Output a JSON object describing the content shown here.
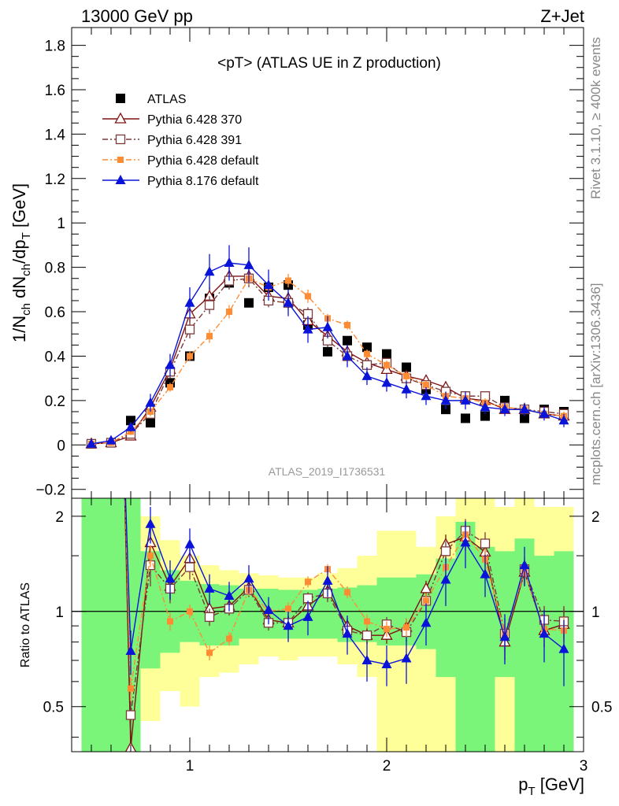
{
  "header": {
    "left": "13000 GeV pp",
    "right": "Z+Jet"
  },
  "side_labels": {
    "rivet": "Rivet 3.1.10, ≥ 400k events",
    "mcplots": "mcplots.cern.ch [arXiv:1306.3436]"
  },
  "chart_data": [
    {
      "type": "line",
      "panel": "main",
      "title": "<pT> (ATLAS UE in Z production)",
      "watermark": "ATLAS_2019_I1736531",
      "ylabel_main": "1/N",
      "ylabel_sub_ch": "ch",
      "ylabel_mid": " dN",
      "ylabel_mid2": "/dp",
      "ylabel_sub_t": "T",
      "ylabel_unit": " [GeV]",
      "xlim": [
        0.4,
        3.0
      ],
      "ylim": [
        -0.24,
        1.88
      ],
      "yticks": [
        "−0.2",
        "0",
        "0.2",
        "0.4",
        "0.6",
        "0.8",
        "1",
        "1.2",
        "1.4",
        "1.6",
        "1.8"
      ],
      "ytick_values": [
        -0.2,
        0,
        0.2,
        0.4,
        0.6,
        0.8,
        1.0,
        1.2,
        1.4,
        1.6,
        1.8
      ],
      "x": [
        0.5,
        0.6,
        0.7,
        0.8,
        0.9,
        1.0,
        1.1,
        1.2,
        1.3,
        1.4,
        1.5,
        1.6,
        1.7,
        1.8,
        1.9,
        2.0,
        2.1,
        2.2,
        2.3,
        2.4,
        2.5,
        2.6,
        2.7,
        2.8,
        2.9
      ],
      "legend": [
        {
          "name": "ATLAS",
          "color": "#000000",
          "marker": "square-filled",
          "line": "none"
        },
        {
          "name": "Pythia 6.428 370",
          "color": "#7f1010",
          "marker": "triangle-open",
          "line": "solid"
        },
        {
          "name": "Pythia 6.428 391",
          "color": "#7a3a3a",
          "marker": "square-open",
          "line": "dashdot"
        },
        {
          "name": "Pythia 6.428 default",
          "color": "#ff8c32",
          "marker": "square-filled-small",
          "line": "dashdot"
        },
        {
          "name": "Pythia 8.176 default",
          "color": "#0a14d8",
          "marker": "triangle-filled",
          "line": "solid"
        }
      ],
      "series": [
        {
          "name": "ATLAS",
          "values": [
            null,
            null,
            0.11,
            0.1,
            0.28,
            0.4,
            0.66,
            0.73,
            0.64,
            0.71,
            0.72,
            0.54,
            0.42,
            0.47,
            0.44,
            0.41,
            0.35,
            0.25,
            0.16,
            0.12,
            0.13,
            0.2,
            0.12,
            0.16,
            0.15
          ],
          "errors": [
            0,
            0,
            0,
            0,
            0,
            0,
            0,
            0,
            0,
            0,
            0,
            0,
            0,
            0,
            0,
            0,
            0,
            0,
            0,
            0,
            0,
            0,
            0,
            0,
            0
          ]
        },
        {
          "name": "Pythia 6.428 370",
          "values": [
            0.005,
            0.01,
            0.04,
            0.17,
            0.34,
            0.59,
            0.67,
            0.76,
            0.76,
            0.67,
            0.66,
            0.56,
            0.49,
            0.42,
            0.37,
            0.34,
            0.31,
            0.29,
            0.26,
            0.21,
            0.2,
            0.16,
            0.16,
            0.14,
            0.13
          ],
          "errors": [
            0.005,
            0.01,
            0.015,
            0.02,
            0.03,
            0.04,
            0.04,
            0.04,
            0.04,
            0.03,
            0.03,
            0.03,
            0.03,
            0.02,
            0.02,
            0.02,
            0.02,
            0.02,
            0.02,
            0.02,
            0.02,
            0.02,
            0.02,
            0.02,
            0.02
          ]
        },
        {
          "name": "Pythia 6.428 391",
          "values": [
            0.005,
            0.01,
            0.05,
            0.14,
            0.33,
            0.52,
            0.63,
            0.74,
            0.75,
            0.65,
            0.64,
            0.59,
            0.47,
            0.4,
            0.36,
            0.37,
            0.3,
            0.27,
            0.24,
            0.22,
            0.22,
            0.17,
            0.16,
            0.15,
            0.14
          ],
          "errors": [
            0.005,
            0.01,
            0.015,
            0.02,
            0.03,
            0.04,
            0.04,
            0.04,
            0.04,
            0.03,
            0.03,
            0.03,
            0.03,
            0.02,
            0.02,
            0.02,
            0.02,
            0.02,
            0.02,
            0.02,
            0.02,
            0.02,
            0.02,
            0.02,
            0.02
          ]
        },
        {
          "name": "Pythia 6.428 default",
          "values": [
            0.005,
            0.01,
            0.06,
            0.15,
            0.26,
            0.4,
            0.49,
            0.6,
            0.75,
            0.71,
            0.74,
            0.67,
            0.57,
            0.54,
            0.41,
            0.36,
            0.31,
            0.27,
            0.22,
            0.21,
            0.19,
            0.17,
            0.16,
            0.14,
            0.13
          ],
          "errors": [
            0.005,
            0.01,
            0.015,
            0.02,
            0.02,
            0.02,
            0.03,
            0.03,
            0.03,
            0.03,
            0.03,
            0.03,
            0.02,
            0.02,
            0.02,
            0.02,
            0.02,
            0.02,
            0.02,
            0.02,
            0.02,
            0.02,
            0.02,
            0.02,
            0.02
          ]
        },
        {
          "name": "Pythia 8.176 default",
          "values": [
            0.005,
            0.02,
            0.08,
            0.19,
            0.36,
            0.64,
            0.78,
            0.82,
            0.81,
            0.72,
            0.64,
            0.52,
            0.53,
            0.4,
            0.31,
            0.28,
            0.25,
            0.22,
            0.2,
            0.2,
            0.17,
            0.16,
            0.16,
            0.14,
            0.11
          ],
          "errors": [
            0.005,
            0.01,
            0.02,
            0.04,
            0.05,
            0.07,
            0.08,
            0.08,
            0.08,
            0.07,
            0.06,
            0.06,
            0.05,
            0.05,
            0.04,
            0.04,
            0.04,
            0.04,
            0.04,
            0.04,
            0.03,
            0.03,
            0.03,
            0.03,
            0.03
          ]
        }
      ]
    },
    {
      "type": "line",
      "panel": "ratio",
      "ylabel": "Ratio to ATLAS",
      "xlabel_main": "p",
      "xlabel_sub": "T",
      "xlabel_unit": " [GeV]",
      "xlim": [
        0.4,
        3.0
      ],
      "ylim": [
        0.36,
        2.28
      ],
      "xticks": [
        "1",
        "2",
        "3"
      ],
      "xtick_values": [
        1,
        2,
        3
      ],
      "yticks": [
        "0.5",
        "1",
        "2"
      ],
      "ytick_values": [
        0.5,
        1,
        2
      ],
      "reference_line": 1,
      "x": [
        0.5,
        0.6,
        0.7,
        0.8,
        0.9,
        1.0,
        1.1,
        1.2,
        1.3,
        1.4,
        1.5,
        1.6,
        1.7,
        1.8,
        1.9,
        2.0,
        2.1,
        2.2,
        2.3,
        2.4,
        2.5,
        2.6,
        2.7,
        2.8,
        2.9
      ],
      "bands": [
        {
          "name": "stat",
          "color": "#7af57a",
          "lo": [
            0.36,
            0.36,
            0.36,
            0.66,
            0.74,
            0.8,
            0.78,
            0.78,
            0.82,
            0.82,
            0.82,
            0.82,
            0.82,
            0.8,
            0.8,
            0.78,
            0.78,
            0.76,
            0.62,
            0.36,
            0.36,
            0.62,
            0.36,
            0.36,
            0.36
          ],
          "hi": [
            2.28,
            2.28,
            2.28,
            1.55,
            1.35,
            1.25,
            1.22,
            1.21,
            1.18,
            1.18,
            1.17,
            1.17,
            1.18,
            1.19,
            1.21,
            1.28,
            1.28,
            1.31,
            1.47,
            1.92,
            1.6,
            1.55,
            1.7,
            1.5,
            1.55
          ]
        },
        {
          "name": "syst",
          "color": "#ffff99",
          "lo": [
            0.36,
            0.36,
            0.36,
            0.45,
            0.56,
            0.5,
            0.62,
            0.64,
            0.68,
            0.72,
            0.7,
            0.72,
            0.72,
            0.68,
            0.62,
            0.36,
            0.36,
            0.36,
            0.36,
            0.36,
            0.36,
            0.36,
            0.36,
            0.36,
            0.36
          ],
          "hi": [
            2.28,
            2.28,
            2.28,
            2.0,
            1.68,
            1.5,
            1.4,
            1.35,
            1.32,
            1.3,
            1.28,
            1.28,
            1.32,
            1.37,
            1.5,
            1.8,
            1.8,
            1.6,
            2.0,
            2.28,
            2.28,
            2.14,
            2.28,
            2.14,
            2.14
          ]
        }
      ],
      "series": [
        {
          "name": "Pythia 6.428 370",
          "values": [
            null,
            null,
            0.37,
            1.65,
            1.2,
            1.47,
            1.02,
            1.04,
            1.19,
            0.94,
            0.92,
            1.04,
            1.16,
            0.9,
            0.84,
            0.84,
            0.89,
            1.18,
            1.63,
            1.72,
            1.54,
            0.8,
            1.33,
            0.87,
            0.91
          ],
          "errors": [
            0,
            0,
            0.05,
            0.2,
            0.12,
            0.12,
            0.06,
            0.05,
            0.06,
            0.05,
            0.05,
            0.05,
            0.07,
            0.05,
            0.05,
            0.05,
            0.06,
            0.07,
            0.12,
            0.16,
            0.14,
            0.1,
            0.12,
            0.1,
            0.11
          ]
        },
        {
          "name": "Pythia 6.428 391",
          "values": [
            null,
            null,
            0.47,
            1.4,
            1.18,
            1.38,
            0.96,
            1.02,
            1.17,
            0.92,
            0.92,
            1.1,
            1.14,
            0.87,
            0.84,
            0.91,
            0.86,
            1.08,
            1.55,
            1.8,
            1.64,
            0.85,
            1.36,
            0.94,
            0.93
          ],
          "errors": [
            0,
            0,
            0.05,
            0.2,
            0.12,
            0.12,
            0.06,
            0.05,
            0.06,
            0.05,
            0.05,
            0.05,
            0.07,
            0.05,
            0.05,
            0.05,
            0.06,
            0.07,
            0.12,
            0.16,
            0.14,
            0.1,
            0.12,
            0.1,
            0.11
          ]
        },
        {
          "name": "Pythia 6.428 default",
          "values": [
            null,
            null,
            0.57,
            1.5,
            0.93,
            1.0,
            0.74,
            0.82,
            1.17,
            1.0,
            1.02,
            1.24,
            1.36,
            1.15,
            0.93,
            0.88,
            0.89,
            1.08,
            1.38,
            1.75,
            1.46,
            0.85,
            1.33,
            0.88,
            0.87
          ],
          "errors": [
            0,
            0,
            0.05,
            0.12,
            0.06,
            0.05,
            0.04,
            0.04,
            0.05,
            0.04,
            0.05,
            0.05,
            0.05,
            0.05,
            0.05,
            0.05,
            0.06,
            0.06,
            0.1,
            0.14,
            0.12,
            0.08,
            0.1,
            0.08,
            0.09
          ]
        },
        {
          "name": "Pythia 8.176 default",
          "values": [
            null,
            null,
            0.75,
            1.89,
            1.27,
            1.63,
            1.18,
            1.12,
            1.27,
            1.01,
            0.9,
            0.96,
            1.25,
            0.85,
            0.7,
            0.68,
            0.71,
            0.92,
            1.26,
            1.65,
            1.31,
            0.83,
            1.4,
            0.85,
            0.76
          ],
          "errors": [
            0,
            0,
            0.12,
            0.25,
            0.18,
            0.2,
            0.13,
            0.12,
            0.13,
            0.1,
            0.1,
            0.12,
            0.14,
            0.12,
            0.1,
            0.1,
            0.12,
            0.14,
            0.22,
            0.28,
            0.2,
            0.15,
            0.2,
            0.16,
            0.18
          ]
        }
      ]
    }
  ]
}
